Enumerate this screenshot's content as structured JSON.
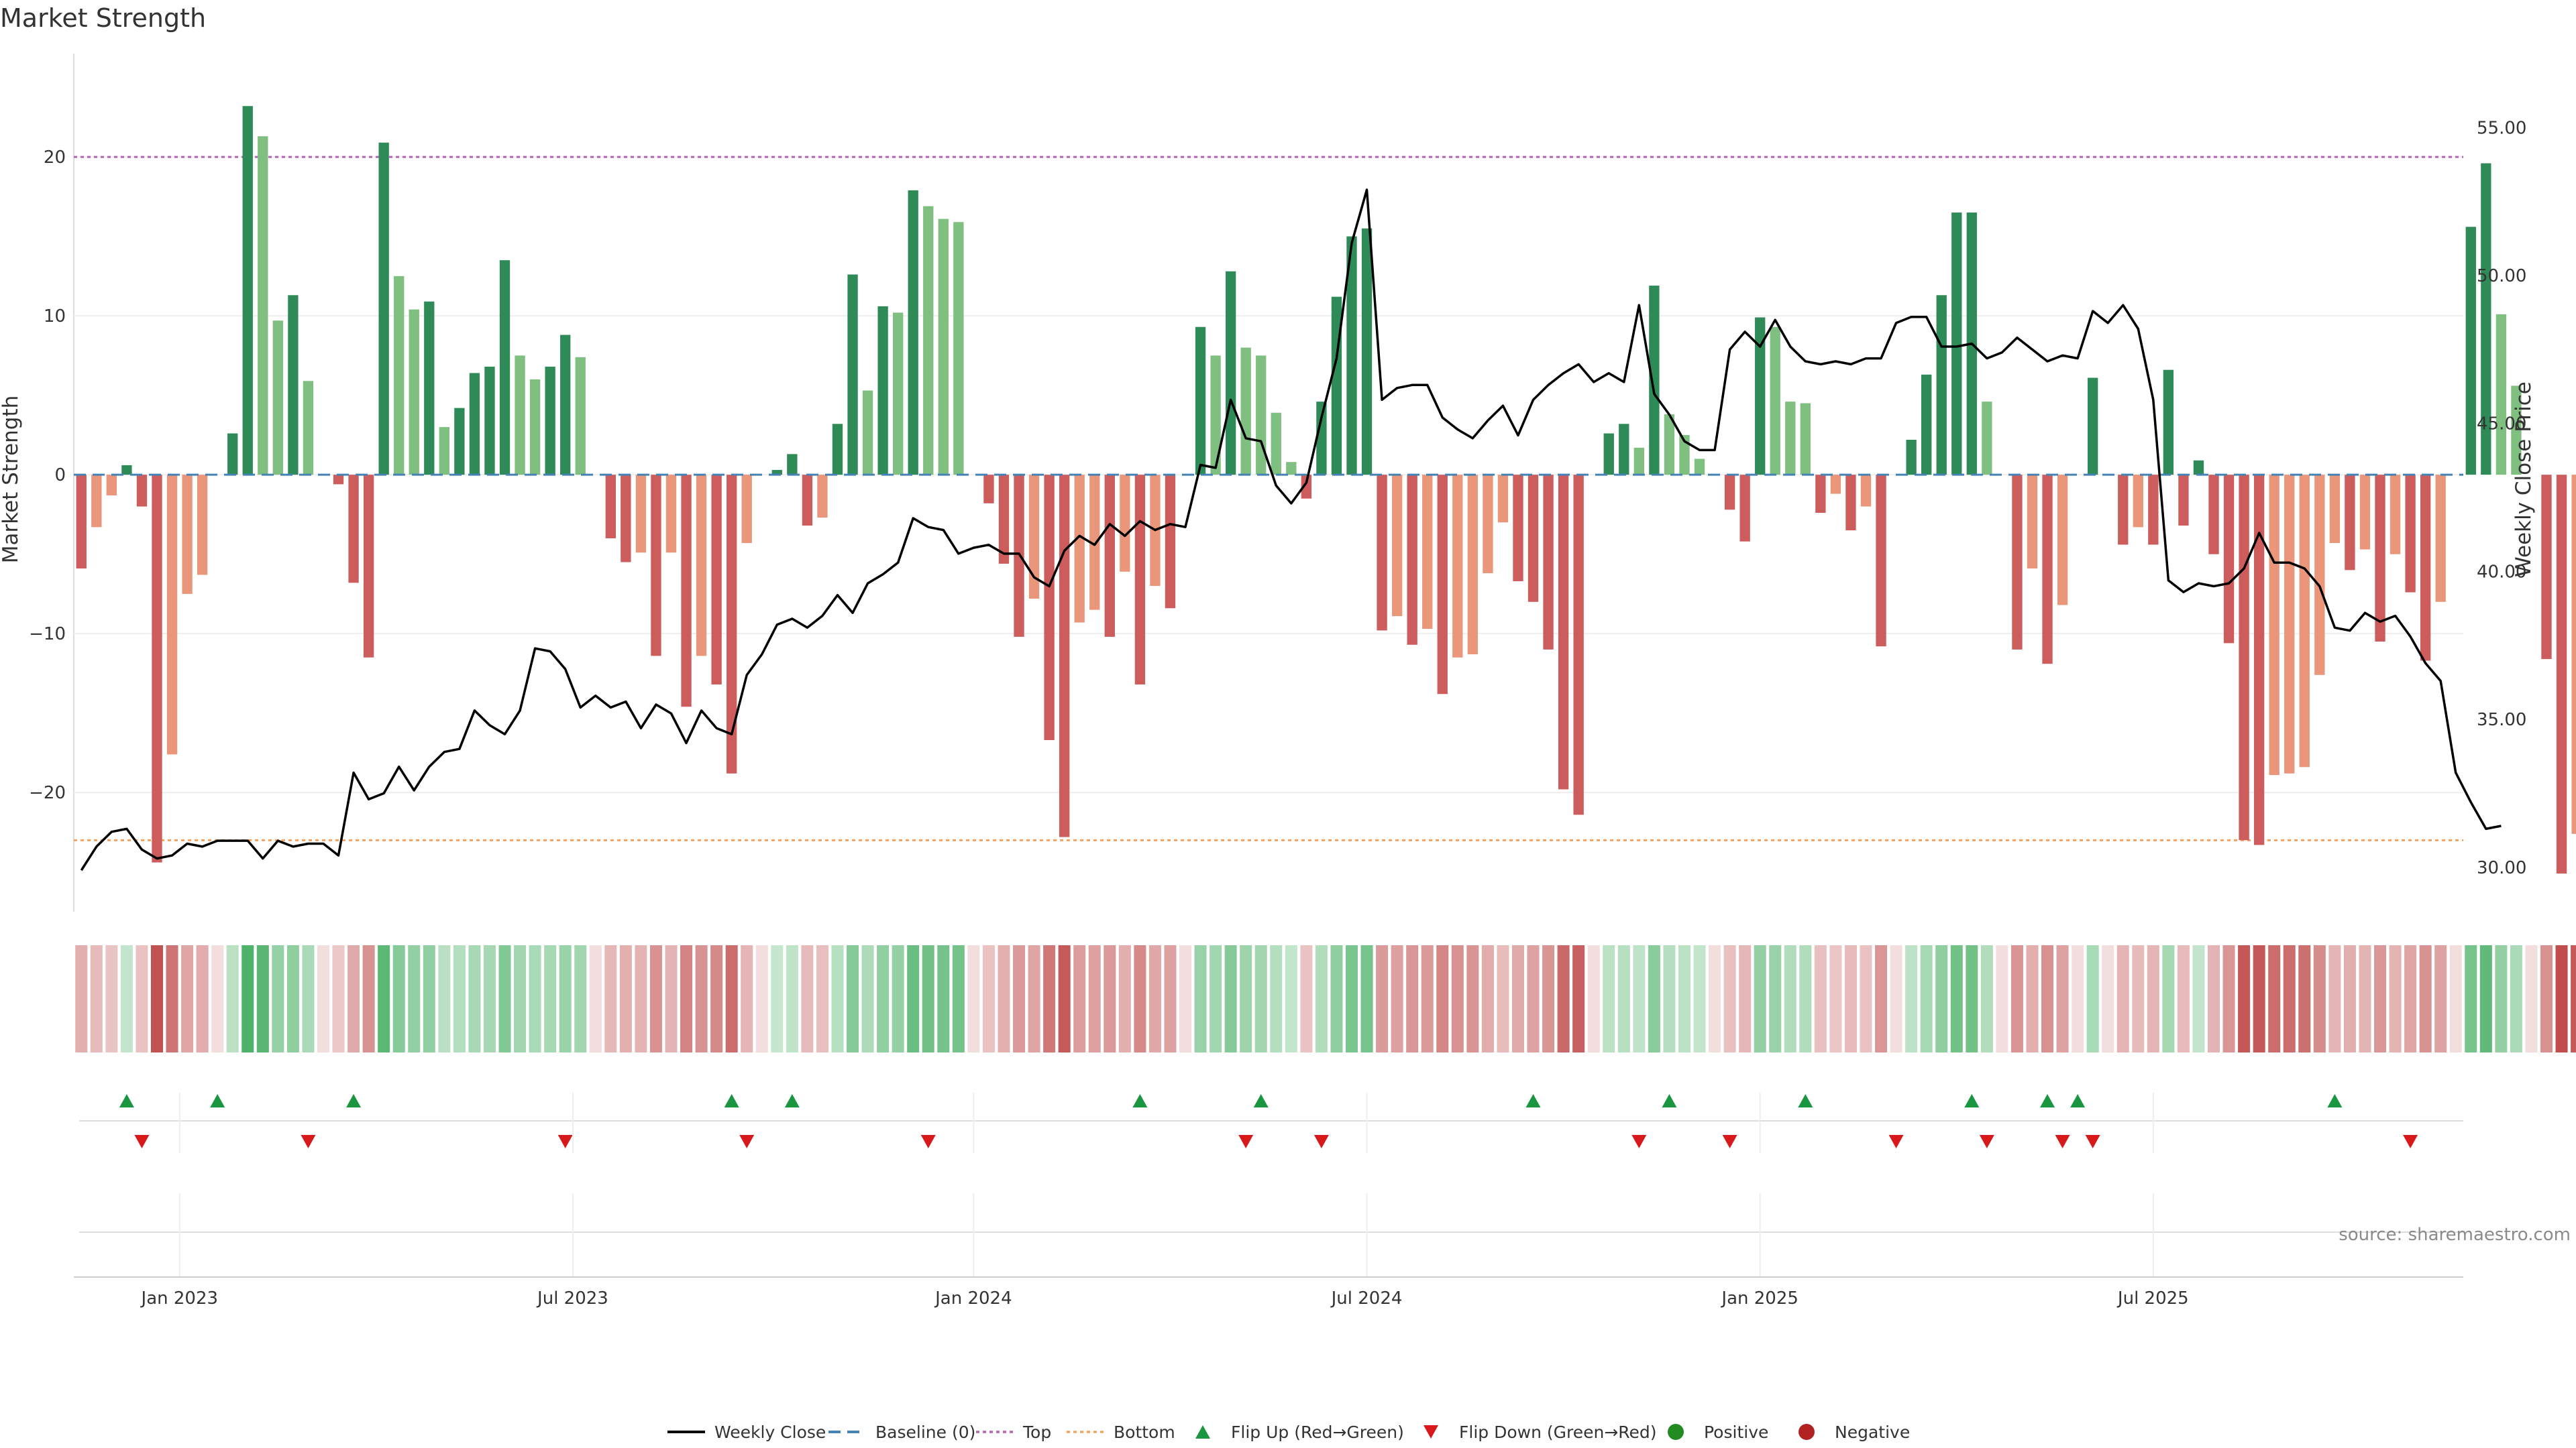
{
  "title": "Market Strength",
  "source": "source: sharemaestro.com",
  "colors": {
    "strong_positive": "#2e8b57",
    "weak_positive": "#7fbf7f",
    "strong_negative": "#cd5c5c",
    "weak_negative": "#e9967a",
    "top_line": "#b266b2",
    "bottom_line": "#f4a460",
    "baseline": "#4682b4",
    "price_line": "#000000",
    "flip_up": "#1a9641",
    "flip_down": "#d7191c",
    "positive_dot": "#228b22",
    "negative_dot": "#b22222"
  },
  "legend": [
    {
      "label": "Weekly Close",
      "kind": "line",
      "color": "#000000"
    },
    {
      "label": "Baseline (0)",
      "kind": "dash",
      "color": "#4682b4"
    },
    {
      "label": "Top",
      "kind": "dot",
      "color": "#b266b2"
    },
    {
      "label": "Bottom",
      "kind": "dot",
      "color": "#f4a460"
    },
    {
      "label": "Flip Up (Red→Green)",
      "kind": "tri-up",
      "color": "#1a9641"
    },
    {
      "label": "Flip Down (Green→Red)",
      "kind": "tri-down",
      "color": "#d7191c"
    },
    {
      "label": "Positive",
      "kind": "circle",
      "color": "#228b22"
    },
    {
      "label": "Negative",
      "kind": "circle",
      "color": "#b22222"
    }
  ],
  "chart_data": {
    "type": "bar",
    "title": "Market Strength",
    "ylabel": "Market Strength",
    "y2label": "Weekly Close Price",
    "ylim": [
      -27.5,
      26.5
    ],
    "y2lim": [
      28.5,
      57.5
    ],
    "yticks": [
      20,
      10,
      0,
      -10,
      -20
    ],
    "y2ticks": [
      "55.00",
      "50.00",
      "45.00",
      "40.00",
      "35.00",
      "30.00"
    ],
    "xtick_labels": [
      "Jan 2023",
      "Jul 2023",
      "Jan 2024",
      "Jul 2024",
      "Jan 2025",
      "Jul 2025"
    ],
    "xtick_weeks": [
      7,
      33,
      59.5,
      85.5,
      111.5,
      137.5
    ],
    "top_threshold": 20,
    "bottom_threshold": -23,
    "weeks": 158,
    "strength": [
      -5.9,
      -3.3,
      -1.3,
      0.6,
      -2.0,
      -24.4,
      -17.6,
      -7.5,
      -6.3,
      0,
      2.6,
      23.2,
      21.3,
      9.7,
      11.3,
      5.9,
      0,
      -0.6,
      -6.8,
      -11.5,
      20.9,
      12.5,
      10.4,
      10.9,
      3.0,
      4.2,
      6.4,
      6.8,
      13.5,
      7.5,
      6.0,
      6.8,
      8.8,
      7.4,
      0,
      -4.0,
      -5.5,
      -4.9,
      -11.4,
      -4.9,
      -14.6,
      -11.4,
      -13.2,
      -18.8,
      -4.3,
      0,
      0.3,
      1.3,
      -3.2,
      -2.7,
      3.2,
      12.6,
      5.3,
      10.6,
      10.2,
      17.9,
      16.9,
      16.1,
      15.9,
      0,
      -1.8,
      -5.6,
      -10.2,
      -7.8,
      -16.7,
      -22.8,
      -9.3,
      -8.5,
      -10.2,
      -6.1,
      -13.2,
      -7.0,
      -8.4,
      0,
      9.3,
      7.5,
      12.8,
      8.0,
      7.5,
      3.9,
      0.8,
      -1.5,
      4.6,
      11.2,
      15.0,
      15.5,
      -9.8,
      -8.9,
      -10.7,
      -9.7,
      -13.8,
      -11.5,
      -11.3,
      -6.2,
      -3.0,
      -6.7,
      -8.0,
      -11.0,
      -19.8,
      -21.4,
      0,
      2.6,
      3.2,
      1.7,
      11.9,
      3.8,
      2.5,
      1.0,
      0,
      -2.2,
      -4.2,
      9.9,
      9.3,
      4.6,
      4.5,
      -2.4,
      -1.2,
      -3.5,
      -2.0,
      -10.8,
      0,
      2.2,
      6.3,
      11.3,
      16.5,
      16.5,
      4.6,
      0,
      -11.0,
      -5.9,
      -11.9,
      -8.2,
      0,
      6.1,
      0,
      -4.4,
      -3.3,
      -4.4,
      6.6,
      -3.2,
      0.9,
      -5.0,
      -10.6,
      -23.0,
      -23.3,
      -18.9,
      -18.8,
      -18.4,
      -12.6,
      -4.3,
      -6.0,
      -4.7,
      -10.5,
      -5.0,
      -7.4,
      -11.7,
      -8.0,
      0,
      15.6,
      19.6,
      10.1,
      5.6,
      0,
      -11.6,
      -25.1,
      -22.6
    ],
    "weekly_close": [
      29.9,
      30.7,
      31.2,
      31.3,
      30.6,
      30.3,
      30.4,
      30.8,
      30.7,
      30.9,
      30.9,
      30.9,
      30.3,
      30.9,
      30.7,
      30.8,
      30.8,
      30.4,
      33.2,
      32.3,
      32.5,
      33.4,
      32.6,
      33.4,
      33.9,
      34.0,
      35.3,
      34.8,
      34.5,
      35.3,
      37.4,
      37.3,
      36.7,
      35.4,
      35.8,
      35.4,
      35.6,
      34.7,
      35.5,
      35.2,
      34.2,
      35.3,
      34.7,
      34.5,
      36.5,
      37.2,
      38.2,
      38.4,
      38.1,
      38.5,
      39.2,
      38.6,
      39.6,
      39.9,
      40.3,
      41.8,
      41.5,
      41.4,
      40.6,
      40.8,
      40.9,
      40.6,
      40.6,
      39.8,
      39.5,
      40.7,
      41.2,
      40.9,
      41.6,
      41.2,
      41.7,
      41.4,
      41.6,
      41.5,
      43.6,
      43.5,
      45.8,
      44.5,
      44.4,
      42.9,
      42.3,
      43.0,
      45.2,
      47.2,
      51.1,
      52.9,
      45.8,
      46.2,
      46.3,
      46.3,
      45.2,
      44.8,
      44.5,
      45.1,
      45.6,
      44.6,
      45.8,
      46.3,
      46.7,
      47.0,
      46.4,
      46.7,
      46.4,
      49.0,
      46.0,
      45.3,
      44.4,
      44.1,
      44.1,
      47.5,
      48.1,
      47.6,
      48.5,
      47.6,
      47.1,
      47.0,
      47.1,
      47.0,
      47.2,
      47.2,
      48.4,
      48.6,
      48.6,
      47.6,
      47.6,
      47.7,
      47.2,
      47.4,
      47.9,
      47.5,
      47.1,
      47.3,
      47.2,
      48.8,
      48.4,
      49.0,
      48.2,
      45.8,
      39.7,
      39.3,
      39.6,
      39.5,
      39.6,
      40.1,
      41.3,
      40.3,
      40.3,
      40.1,
      39.5,
      38.1,
      38.0,
      38.6,
      38.3,
      38.5,
      37.8,
      36.9,
      36.3,
      33.2,
      32.2,
      31.3,
      31.4
    ],
    "flip_up_weeks": [
      3,
      9,
      18,
      43,
      47,
      70,
      78,
      96,
      105,
      114,
      125,
      130,
      132,
      149
    ],
    "flip_down_weeks": [
      4,
      15,
      32,
      44,
      56,
      77,
      82,
      103,
      109,
      120,
      126,
      131,
      133,
      154
    ],
    "series": [
      {
        "name": "Weekly Close"
      },
      {
        "name": "Baseline (0)"
      },
      {
        "name": "Top"
      },
      {
        "name": "Bottom"
      },
      {
        "name": "Flip Up (Red→Green)"
      },
      {
        "name": "Flip Down (Green→Red)"
      },
      {
        "name": "Positive"
      },
      {
        "name": "Negative"
      }
    ]
  }
}
